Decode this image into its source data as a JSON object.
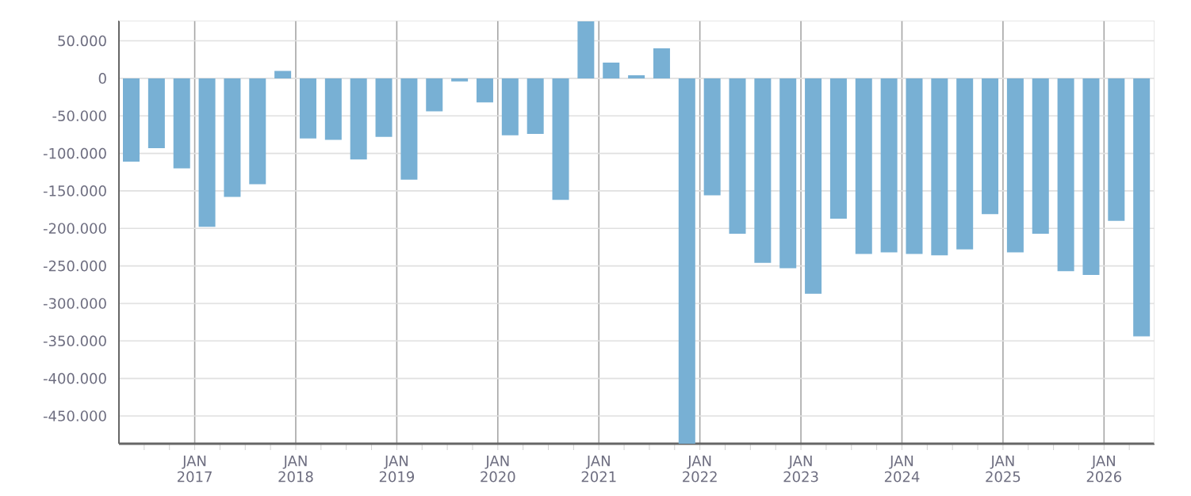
{
  "chart_data": {
    "type": "bar",
    "x": [
      "2016-05-15",
      "2016-08-15",
      "2016-11-15",
      "2017-02-15",
      "2017-05-15",
      "2017-08-15",
      "2017-11-15",
      "2018-02-15",
      "2018-05-15",
      "2018-08-15",
      "2018-11-15",
      "2019-02-15",
      "2019-05-15",
      "2019-08-15",
      "2019-11-15",
      "2020-02-15",
      "2020-05-15",
      "2020-08-15",
      "2020-11-15",
      "2021-02-15",
      "2021-05-15",
      "2021-08-15",
      "2021-11-15",
      "2022-02-15",
      "2022-05-15",
      "2022-08-15",
      "2022-11-15",
      "2023-02-15",
      "2023-05-15",
      "2023-08-15",
      "2023-11-15",
      "2024-02-15",
      "2024-05-15",
      "2024-08-15",
      "2024-11-15",
      "2025-02-15",
      "2025-05-15",
      "2025-08-15",
      "2025-11-15",
      "2026-02-15",
      "2026-05-15"
    ],
    "values": [
      -111000,
      -93000,
      -120000,
      -198000,
      -158000,
      -141000,
      10000,
      -80000,
      -82000,
      -108000,
      -78000,
      -135000,
      -44000,
      -4000,
      -32000,
      -76000,
      -74000,
      -162000,
      76000,
      21000,
      4000,
      40000,
      -487000,
      -156000,
      -207000,
      -246000,
      -253000,
      -287000,
      -187000,
      -234000,
      -232000,
      -234000,
      -236000,
      -228000,
      -181000,
      -232000,
      -207000,
      -257000,
      -262000,
      -190000,
      -344000
    ],
    "color": "#78b0d4",
    "xlim": [
      "2016-04",
      "2026-07"
    ],
    "xticks": [
      {
        "value": "2016-07",
        "label": null
      },
      {
        "value": "2016-10",
        "label": null
      },
      {
        "value": "2017-01",
        "label": "JAN 2017"
      },
      {
        "value": "2017-04",
        "label": null
      },
      {
        "value": "2017-07",
        "label": null
      },
      {
        "value": "2017-10",
        "label": null
      },
      {
        "value": "2018-01",
        "label": "JAN 2018"
      },
      {
        "value": "2018-04",
        "label": null
      },
      {
        "value": "2018-07",
        "label": null
      },
      {
        "value": "2018-10",
        "label": null
      },
      {
        "value": "2019-01",
        "label": "JAN 2019"
      },
      {
        "value": "2019-04",
        "label": null
      },
      {
        "value": "2019-07",
        "label": null
      },
      {
        "value": "2019-10",
        "label": null
      },
      {
        "value": "2020-01",
        "label": "JAN 2020"
      },
      {
        "value": "2020-04",
        "label": null
      },
      {
        "value": "2020-07",
        "label": null
      },
      {
        "value": "2020-10",
        "label": null
      },
      {
        "value": "2021-01",
        "label": "JAN 2021"
      },
      {
        "value": "2021-04",
        "label": null
      },
      {
        "value": "2021-07",
        "label": null
      },
      {
        "value": "2021-10",
        "label": null
      },
      {
        "value": "2022-01",
        "label": "JAN 2022"
      },
      {
        "value": "2022-04",
        "label": null
      },
      {
        "value": "2022-07",
        "label": null
      },
      {
        "value": "2022-10",
        "label": null
      },
      {
        "value": "2023-01",
        "label": "JAN 2023"
      },
      {
        "value": "2023-04",
        "label": null
      },
      {
        "value": "2023-07",
        "label": null
      },
      {
        "value": "2023-10",
        "label": null
      },
      {
        "value": "2024-01",
        "label": "JAN 2024"
      },
      {
        "value": "2024-04",
        "label": null
      },
      {
        "value": "2024-07",
        "label": null
      },
      {
        "value": "2024-10",
        "label": null
      },
      {
        "value": "2025-01",
        "label": "JAN 2025"
      },
      {
        "value": "2025-04",
        "label": null
      },
      {
        "value": "2025-07",
        "label": null
      },
      {
        "value": "2025-10",
        "label": null
      },
      {
        "value": "2026-01",
        "label": "JAN 2026"
      },
      {
        "value": "2026-04",
        "label": null
      }
    ],
    "ylim": [
      -487000,
      77000
    ],
    "yticks": [
      {
        "value": 50000,
        "label": "50.000"
      },
      {
        "value": 0,
        "label": "0"
      },
      {
        "value": -50000,
        "label": "-50.000"
      },
      {
        "value": -100000,
        "label": "-100.000"
      },
      {
        "value": -150000,
        "label": "-150.000"
      },
      {
        "value": -200000,
        "label": "-200.000"
      },
      {
        "value": -250000,
        "label": "-250.000"
      },
      {
        "value": -300000,
        "label": "-300.000"
      },
      {
        "value": -350000,
        "label": "-350.000"
      },
      {
        "value": -400000,
        "label": "-400.000"
      },
      {
        "value": -450000,
        "label": "-450.000"
      }
    ],
    "grid": true
  }
}
